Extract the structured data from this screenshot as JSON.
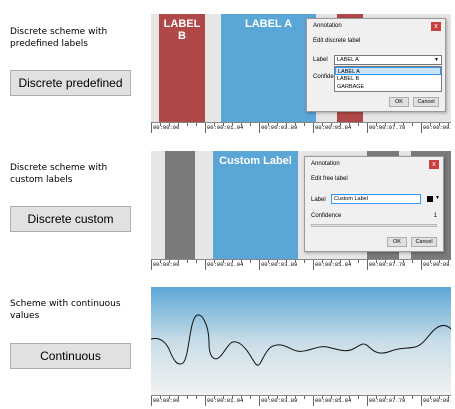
{
  "rows": [
    {
      "description": "Discrete scheme with predefined labels",
      "button": "Discrete predefined"
    },
    {
      "description": "Discrete scheme with custom labels",
      "button": "Discrete custom"
    },
    {
      "description": "Scheme with continuous values",
      "button": "Continuous"
    }
  ],
  "timeline": {
    "ticks": [
      "00:00:00",
      "00:00:01.94",
      "00:00:03.89",
      "00:00:05.84",
      "00:00:07.78",
      "00:00:09.7"
    ]
  },
  "panel1": {
    "segments": [
      {
        "label": "LABEL B",
        "color": "#b04848"
      },
      {
        "label": "LABEL A",
        "color": "#5aa6d6"
      },
      {
        "label": "",
        "color": "#b04848"
      }
    ],
    "dialog": {
      "title": "Annotation",
      "close": "x",
      "subtitle": "Edit discrete label",
      "label_caption": "Label",
      "selected": "LABEL A",
      "confidence_caption": "Confide",
      "options": [
        "LABEL A",
        "LABEL B",
        "GARBAGE"
      ],
      "ok": "OK",
      "cancel": "Cancel"
    }
  },
  "panel2": {
    "segments": [
      {
        "label": "",
        "color": "#7a7a7a"
      },
      {
        "label": "Custom Label",
        "color": "#5aa6d6"
      },
      {
        "label": "",
        "color": "#7a7a7a"
      }
    ],
    "dialog": {
      "title": "Annotation",
      "close": "x",
      "subtitle": "Edit free label",
      "label_caption": "Label",
      "text_value": "Custom Label",
      "confidence_caption": "Confidence",
      "confidence_value": "1",
      "ok": "OK",
      "cancel": "Cancel"
    }
  },
  "colors": {
    "red_label": "#b04848",
    "blue_label": "#5aa6d6",
    "gray_label": "#7a7a7a",
    "continuous_top": "#5aa6d6",
    "continuous_bottom": "#f0f0f0"
  }
}
